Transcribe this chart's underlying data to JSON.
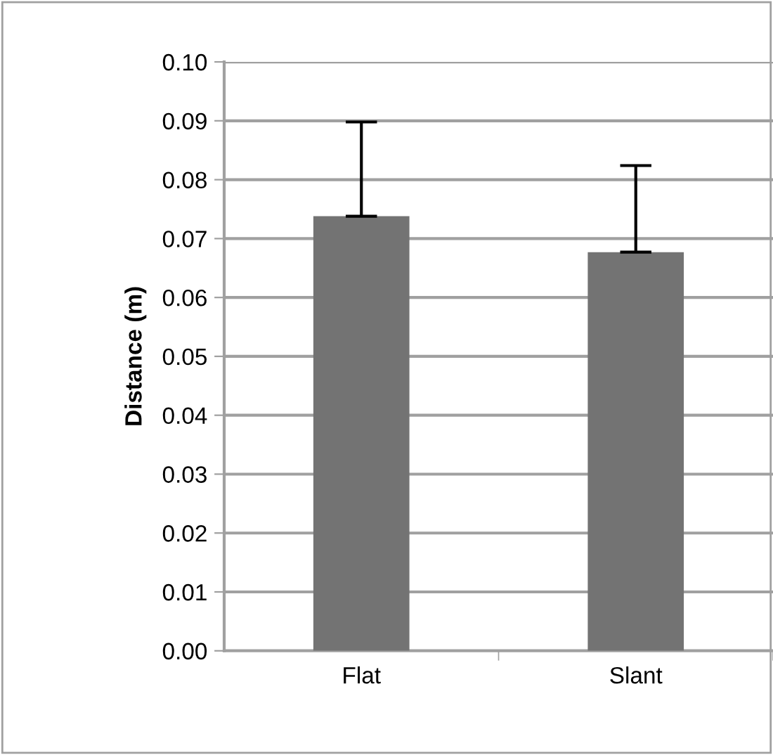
{
  "chart_data": {
    "type": "bar",
    "ylabel": "Distance (m)",
    "categories": [
      "Flat",
      "Slant"
    ],
    "values": [
      0.0738,
      0.0677
    ],
    "errors": [
      [
        0.0738,
        0.0898
      ],
      [
        0.0677,
        0.0824
      ]
    ],
    "color": "#737373",
    "ylim": [
      0,
      0.1
    ],
    "yticks": [
      {
        "value": 0,
        "label": "0.00"
      },
      {
        "value": 0.01,
        "label": "0.01"
      },
      {
        "value": 0.02,
        "label": "0.02"
      },
      {
        "value": 0.03,
        "label": "0.03"
      },
      {
        "value": 0.04,
        "label": "0.04"
      },
      {
        "value": 0.05,
        "label": "0.05"
      },
      {
        "value": 0.06,
        "label": "0.06"
      },
      {
        "value": 0.07,
        "label": "0.07"
      },
      {
        "value": 0.08,
        "label": "0.08"
      },
      {
        "value": 0.09,
        "label": "0.09"
      },
      {
        "value": 0.1,
        "label": "0.10"
      }
    ],
    "grid": "y"
  }
}
